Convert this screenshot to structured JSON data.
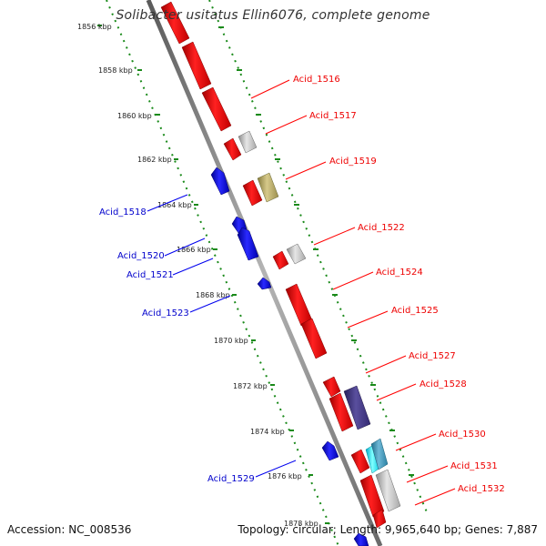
{
  "title": "Solibacter usitatus Ellin6076, complete genome",
  "footer": {
    "accession": "Accession: NC_008536",
    "summary": "Topology: circular; Length: 9,965,640 bp; Genes: 7,887"
  },
  "colors": {
    "forward": "#ff0000",
    "reverse": "#0000ee",
    "backbone": "#888888",
    "scale_dots": "#1a8a1a"
  },
  "scale_labels": [
    "1856 kbp",
    "1858 kbp",
    "1860 kbp",
    "1862 kbp",
    "1864 kbp",
    "1866 kbp",
    "1868 kbp",
    "1870 kbp",
    "1872 kbp",
    "1874 kbp",
    "1876 kbp",
    "1878 kbp"
  ],
  "gene_labels": {
    "forward": [
      "Acid_1516",
      "Acid_1517",
      "Acid_1519",
      "Acid_1522",
      "Acid_1524",
      "Acid_1525",
      "Acid_1527",
      "Acid_1528",
      "Acid_1530",
      "Acid_1531",
      "Acid_1532"
    ],
    "reverse": [
      "Acid_1518",
      "Acid_1520",
      "Acid_1521",
      "Acid_1523",
      "Acid_1529"
    ]
  }
}
